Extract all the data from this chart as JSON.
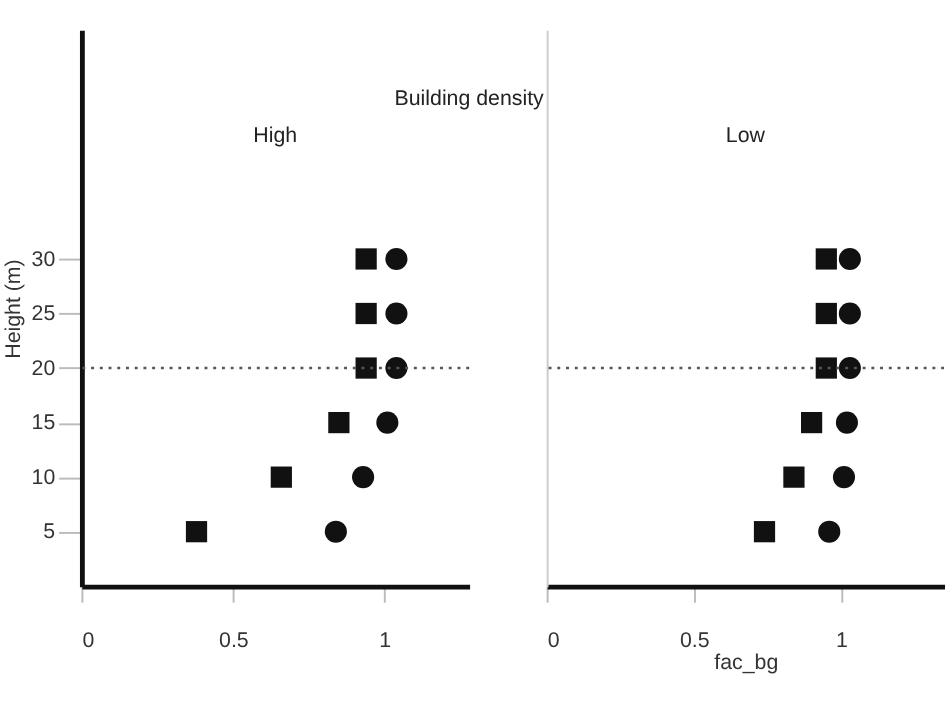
{
  "chart_data": [
    {
      "type": "scatter",
      "title": "High",
      "subtitle": "Building density",
      "ylabel": "Height (m)",
      "xlim": [
        0,
        1.28
      ],
      "xticks": [
        0,
        0.5,
        1
      ],
      "ylim": [
        0,
        51
      ],
      "yticks": [
        5,
        10,
        15,
        20,
        25,
        30
      ],
      "series": [
        {
          "color": "#111111",
          "marker": "square",
          "x": [
            0.38,
            0.66,
            0.85,
            0.94,
            0.94,
            0.94
          ],
          "values": [
            5,
            10,
            15,
            20,
            25,
            30
          ]
        },
        {
          "color": "#111111",
          "marker": "circle",
          "x": [
            0.84,
            0.93,
            1.01,
            1.04,
            1.04,
            1.04
          ],
          "values": [
            5,
            10,
            15,
            20,
            25,
            30
          ]
        }
      ],
      "ref_lines": [
        {
          "axis": "y",
          "value": 20,
          "line_style": "dotted",
          "color": "#555555"
        }
      ]
    },
    {
      "type": "scatter",
      "title": "Low",
      "xlabel": "fac_bg",
      "xlim": [
        0,
        1.35
      ],
      "xticks": [
        0,
        0.5,
        1
      ],
      "ylim": [
        0,
        51
      ],
      "tick_labels": "x",
      "series": [
        {
          "color": "#111111",
          "marker": "square",
          "x": [
            0.74,
            0.84,
            0.9,
            0.95,
            0.95,
            0.95
          ],
          "values": [
            5,
            10,
            15,
            20,
            25,
            30
          ]
        },
        {
          "color": "#111111",
          "marker": "circle",
          "x": [
            0.96,
            1.01,
            1.02,
            1.03,
            1.03,
            1.03
          ],
          "values": [
            5,
            10,
            15,
            20,
            25,
            30
          ]
        }
      ],
      "ref_lines": [
        {
          "axis": "y",
          "value": 20,
          "line_style": "dotted",
          "color": "#555555"
        }
      ]
    }
  ]
}
